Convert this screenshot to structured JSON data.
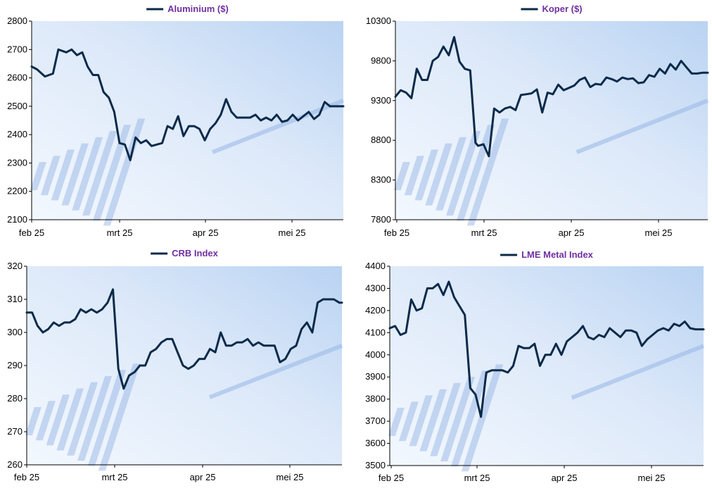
{
  "colors": {
    "series_line": "#0b2a4a",
    "legend_text": "#7030a0",
    "axis": "#000000",
    "bg_light": "#f3f8fe",
    "bg_blue": "#b9d3f2",
    "deco_bar": "#8fb0e3"
  },
  "chart_data": [
    {
      "type": "line",
      "legend": "Aluminium ($)",
      "legend_position": "top-center",
      "grid": false,
      "ylim": [
        2100,
        2800
      ],
      "yticks": [
        "2800",
        "2700",
        "2600",
        "2500",
        "2400",
        "2300",
        "2200",
        "2100"
      ],
      "xticks": [
        "feb 25",
        "mrt 25",
        "apr 25",
        "mei 25"
      ],
      "series": [
        {
          "name": "Aluminium ($)",
          "x": [
            0,
            2,
            5,
            8,
            10,
            13,
            15,
            17,
            19,
            21,
            23,
            25,
            27,
            29,
            31,
            33,
            35,
            37,
            39,
            41,
            43,
            45,
            47,
            49,
            51,
            53,
            55,
            57,
            59,
            61,
            63,
            65,
            67,
            69,
            71,
            73,
            75,
            77,
            80,
            82,
            84,
            86,
            88,
            90,
            92,
            94,
            96,
            98,
            100,
            102,
            104,
            106,
            108,
            110,
            112,
            114,
            116,
            117
          ],
          "y": [
            2640,
            2630,
            2605,
            2615,
            2700,
            2690,
            2700,
            2680,
            2690,
            2640,
            2610,
            2610,
            2550,
            2530,
            2480,
            2370,
            2365,
            2310,
            2390,
            2370,
            2380,
            2360,
            2365,
            2370,
            2430,
            2420,
            2465,
            2395,
            2430,
            2430,
            2420,
            2380,
            2420,
            2440,
            2470,
            2525,
            2480,
            2460,
            2460,
            2460,
            2470,
            2450,
            2460,
            2450,
            2470,
            2445,
            2450,
            2470,
            2450,
            2465,
            2480,
            2455,
            2470,
            2515,
            2500,
            2500,
            2500,
            2500
          ]
        }
      ]
    },
    {
      "type": "line",
      "legend": "Koper ($)",
      "legend_position": "top-center",
      "grid": false,
      "ylim": [
        7800,
        10300
      ],
      "yticks": [
        "10300",
        "9800",
        "9300",
        "8800",
        "8300",
        "7800"
      ],
      "xticks": [
        "feb 25",
        "mrt 25",
        "apr 25",
        "mei 25"
      ],
      "series": [
        {
          "name": "Koper ($)",
          "x": [
            0,
            2,
            4,
            6,
            8,
            10,
            12,
            14,
            16,
            18,
            20,
            22,
            24,
            26,
            28,
            30,
            31,
            33,
            35,
            37,
            39,
            41,
            43,
            45,
            47,
            49,
            51,
            53,
            55,
            57,
            59,
            61,
            63,
            65,
            67,
            69,
            71,
            73,
            75,
            77,
            79,
            81,
            83,
            85,
            87,
            89,
            91,
            93,
            95,
            97,
            99,
            101,
            103,
            105,
            107,
            109,
            111,
            113,
            115,
            117
          ],
          "y": [
            9350,
            9430,
            9400,
            9330,
            9700,
            9560,
            9560,
            9800,
            9850,
            9980,
            9870,
            10100,
            9790,
            9700,
            9680,
            8770,
            8730,
            8750,
            8600,
            9200,
            9150,
            9200,
            9220,
            9180,
            9370,
            9380,
            9390,
            9440,
            9150,
            9400,
            9380,
            9500,
            9430,
            9460,
            9490,
            9560,
            9590,
            9470,
            9510,
            9500,
            9590,
            9570,
            9540,
            9590,
            9570,
            9580,
            9520,
            9530,
            9620,
            9600,
            9700,
            9640,
            9760,
            9690,
            9800,
            9720,
            9640,
            9640,
            9650,
            9650
          ]
        }
      ]
    },
    {
      "type": "line",
      "legend": "CRB Index",
      "legend_position": "top-center",
      "grid": false,
      "ylim": [
        260,
        320
      ],
      "yticks": [
        "320",
        "310",
        "300",
        "290",
        "280",
        "270",
        "260"
      ],
      "xticks": [
        "feb 25",
        "mrt 25",
        "apr 25",
        "mei 25"
      ],
      "series": [
        {
          "name": "CRB Index",
          "x": [
            0,
            2,
            4,
            6,
            8,
            10,
            12,
            14,
            16,
            18,
            20,
            22,
            24,
            26,
            28,
            30,
            32,
            34,
            35,
            36,
            38,
            40,
            42,
            44,
            46,
            48,
            50,
            52,
            54,
            56,
            58,
            60,
            62,
            64,
            66,
            68,
            70,
            72,
            74,
            76,
            78,
            80,
            82,
            84,
            86,
            88,
            90,
            92,
            94,
            96,
            98,
            100,
            102,
            104,
            106,
            108,
            110,
            112,
            114,
            116,
            117
          ],
          "y": [
            306,
            306,
            302,
            300,
            301,
            303,
            302,
            303,
            303,
            304,
            307,
            306,
            307,
            306,
            307,
            309,
            313,
            289,
            286,
            283,
            287,
            288,
            290,
            290,
            294,
            295,
            297,
            298,
            298,
            294,
            290,
            289,
            290,
            292,
            292,
            295,
            294,
            300,
            296,
            296,
            297,
            297,
            298,
            296,
            297,
            296,
            296,
            296,
            291,
            292,
            295,
            296,
            301,
            303,
            300,
            309,
            310,
            310,
            310,
            309,
            309
          ]
        }
      ]
    },
    {
      "type": "line",
      "legend": "LME Metal Index",
      "legend_position": "top-center",
      "grid": false,
      "ylim": [
        3500,
        4400
      ],
      "yticks": [
        "4400",
        "4300",
        "4200",
        "4100",
        "4000",
        "3900",
        "3800",
        "3700",
        "3600",
        "3500"
      ],
      "xticks": [
        "feb 25",
        "mrt 25",
        "apr 25",
        "mei 25"
      ],
      "series": [
        {
          "name": "LME Metal Index",
          "x": [
            0,
            2,
            4,
            6,
            8,
            10,
            12,
            14,
            16,
            18,
            20,
            22,
            24,
            26,
            28,
            30,
            32,
            34,
            36,
            38,
            40,
            42,
            44,
            46,
            48,
            50,
            52,
            54,
            56,
            58,
            60,
            62,
            64,
            66,
            68,
            70,
            72,
            74,
            76,
            78,
            80,
            82,
            84,
            86,
            88,
            90,
            92,
            94,
            96,
            98,
            100,
            102,
            104,
            106,
            108,
            110,
            112,
            114,
            116,
            117
          ],
          "y": [
            4120,
            4130,
            4090,
            4100,
            4250,
            4200,
            4210,
            4300,
            4300,
            4320,
            4270,
            4330,
            4260,
            4220,
            4180,
            3850,
            3820,
            3720,
            3920,
            3930,
            3930,
            3930,
            3920,
            3950,
            4040,
            4030,
            4030,
            4050,
            3950,
            4000,
            4000,
            4050,
            4000,
            4060,
            4080,
            4100,
            4130,
            4080,
            4070,
            4090,
            4080,
            4120,
            4100,
            4080,
            4110,
            4110,
            4100,
            4040,
            4070,
            4090,
            4110,
            4120,
            4110,
            4140,
            4130,
            4150,
            4120,
            4115,
            4115,
            4115
          ]
        }
      ]
    }
  ]
}
